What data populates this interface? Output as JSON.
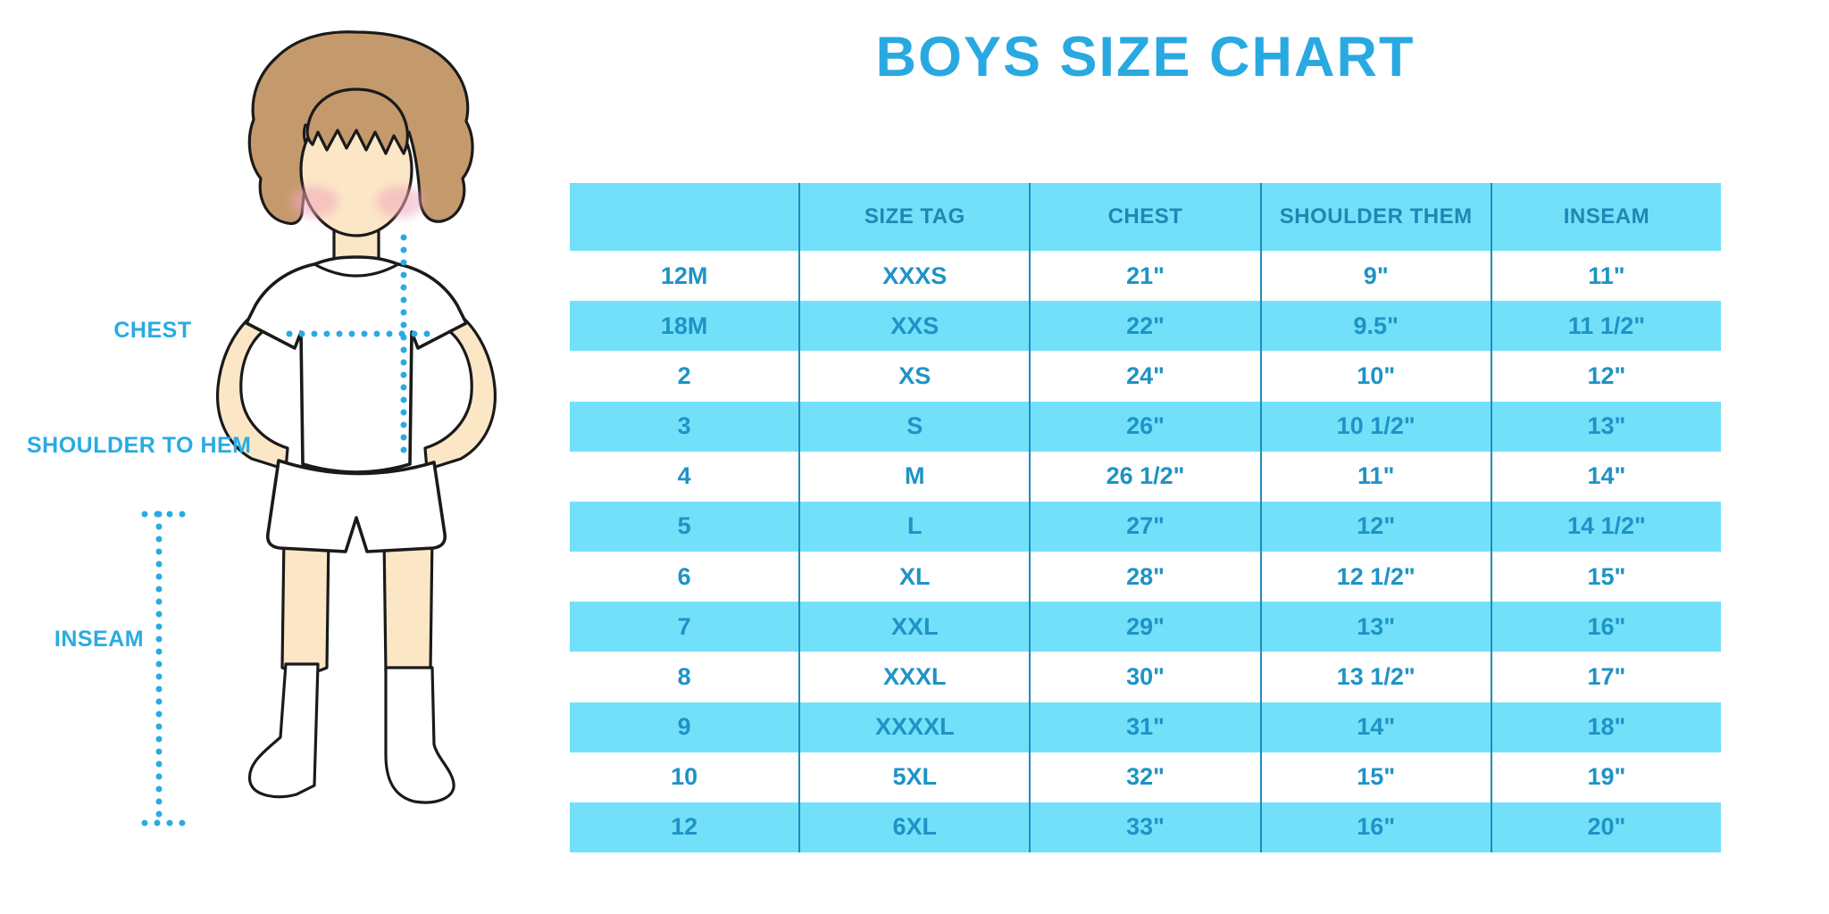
{
  "chart_data": {
    "type": "table",
    "title": "BOYS SIZE CHART",
    "columns": [
      "",
      "SIZE TAG",
      "CHEST",
      "SHOULDER THEM",
      "INSEAM"
    ],
    "rows": [
      [
        "12M",
        "XXXS",
        "21\"",
        "9\"",
        "11\""
      ],
      [
        "18M",
        "XXS",
        "22\"",
        "9.5\"",
        "11 1/2\""
      ],
      [
        "2",
        "XS",
        "24\"",
        "10\"",
        "12\""
      ],
      [
        "3",
        "S",
        "26\"",
        "10 1/2\"",
        "13\""
      ],
      [
        "4",
        "M",
        "26 1/2\"",
        "11\"",
        "14\""
      ],
      [
        "5",
        "L",
        "27\"",
        "12\"",
        "14 1/2\""
      ],
      [
        "6",
        "XL",
        "28\"",
        "12 1/2\"",
        "15\""
      ],
      [
        "7",
        "XXL",
        "29\"",
        "13\"",
        "16\""
      ],
      [
        "8",
        "XXXL",
        "30\"",
        "13 1/2\"",
        "17\""
      ],
      [
        "9",
        "XXXXL",
        "31\"",
        "14\"",
        "18\""
      ],
      [
        "10",
        "5XL",
        "32\"",
        "15\"",
        "19\""
      ],
      [
        "12",
        "6XL",
        "33\"",
        "16\"",
        "20\""
      ]
    ],
    "layout": {
      "header_background": "#73E0FA",
      "row_alternation": [
        "#FFFFFF",
        "#73E0FA"
      ],
      "grid": "vertical-dividers-only",
      "first_data_row_background": "#FFFFFF"
    }
  },
  "figure_labels": {
    "chest": "CHEST",
    "shoulder_to_hem": "SHOULDER TO HEM",
    "inseam": "INSEAM"
  },
  "colors": {
    "title": "#29A9E1",
    "label": "#29ABE2",
    "accent": "#29ABE2",
    "band": "#73E0FA",
    "cell": "#1E93C6",
    "header": "#1F87B2",
    "divider": "#1D8CBC",
    "skin": "#FBE7C6",
    "hair": "#C49A6C",
    "blush": "#F2A7BC",
    "outline": "#1A1A1A"
  }
}
